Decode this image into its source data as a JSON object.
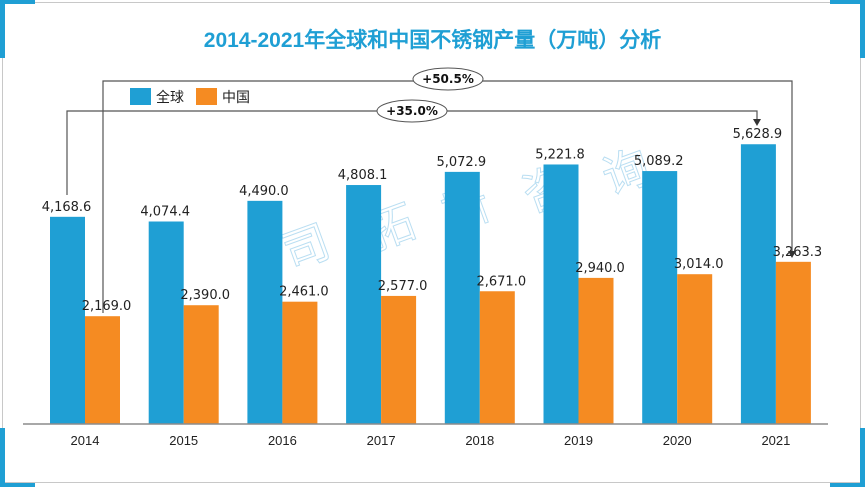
{
  "colors": {
    "global": "#1f9fd4",
    "china": "#f58b22",
    "title": "#1f9fd4",
    "frame_accent": "#1f9fd4"
  },
  "chart_data": {
    "type": "bar",
    "title": "2014-2021年全球和中国不锈钢产量（万吨）分析",
    "xlabel": "",
    "ylabel": "",
    "categories": [
      "2014",
      "2015",
      "2016",
      "2017",
      "2018",
      "2019",
      "2020",
      "2021"
    ],
    "series": [
      {
        "name": "全球",
        "values": [
          4168.6,
          4074.4,
          4490.0,
          4808.1,
          5072.9,
          5221.8,
          5089.2,
          5628.9
        ],
        "labels": [
          "4,168.6",
          "4,074.4",
          "4,490.0",
          "4,808.1",
          "5,072.9",
          "5,221.8",
          "5,089.2",
          "5,628.9"
        ]
      },
      {
        "name": "中国",
        "values": [
          2169.0,
          2390.0,
          2461.0,
          2577.0,
          2671.0,
          2940.0,
          3014.0,
          3263.3
        ],
        "labels": [
          "2,169.0",
          "2,390.0",
          "2,461.0",
          "2,577.0",
          "2,671.0",
          "2,940.0",
          "3,014.0",
          "3,263.3"
        ]
      }
    ],
    "ylim": [
      0,
      6000
    ],
    "grid": false,
    "legend": {
      "placement": "top-left",
      "entries": [
        "全球",
        "中国"
      ]
    },
    "annotations": [
      {
        "text": "+35.0%",
        "from": "2014 全球",
        "to": "2021 全球"
      },
      {
        "text": "+50.5%",
        "from": "2014 中国",
        "to": "2021 中国"
      }
    ]
  },
  "watermark": [
    "司",
    "拓",
    "斯",
    "咨",
    "询"
  ]
}
